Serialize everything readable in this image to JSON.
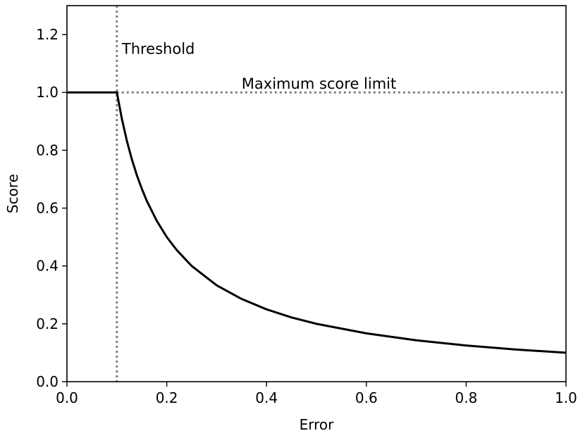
{
  "chart_data": {
    "type": "line",
    "title": "",
    "xlabel": "Error",
    "ylabel": "Score",
    "xlim": [
      0.0,
      1.0
    ],
    "ylim": [
      0.0,
      1.3
    ],
    "grid": false,
    "x_ticks": [
      0.0,
      0.2,
      0.4,
      0.6,
      0.8,
      1.0
    ],
    "x_tick_labels": [
      "0.0",
      "0.2",
      "0.4",
      "0.6",
      "0.8",
      "1.0"
    ],
    "y_ticks": [
      0.0,
      0.2,
      0.4,
      0.6,
      0.8,
      1.0,
      1.2
    ],
    "y_tick_labels": [
      "0.0",
      "0.2",
      "0.4",
      "0.6",
      "0.8",
      "1.0",
      "1.2"
    ],
    "series": [
      {
        "color": "#000000",
        "x": [
          0.0,
          0.1,
          0.11,
          0.12,
          0.13,
          0.14,
          0.15,
          0.16,
          0.18,
          0.2,
          0.22,
          0.25,
          0.3,
          0.35,
          0.4,
          0.45,
          0.5,
          0.6,
          0.7,
          0.8,
          0.9,
          1.0
        ],
        "y": [
          1.0,
          1.0,
          0.909,
          0.833,
          0.769,
          0.714,
          0.667,
          0.625,
          0.556,
          0.5,
          0.455,
          0.4,
          0.333,
          0.286,
          0.25,
          0.222,
          0.2,
          0.167,
          0.143,
          0.125,
          0.111,
          0.1
        ]
      }
    ],
    "reference_lines": [
      {
        "orientation": "vertical",
        "value": 0.1,
        "style": "dotted",
        "color": "#808080"
      },
      {
        "orientation": "horizontal",
        "value": 1.0,
        "style": "dotted",
        "color": "#808080",
        "x_from": 0.1
      }
    ],
    "annotations": [
      {
        "text": "Threshold",
        "x": 0.11,
        "y": 1.15
      },
      {
        "text": "Maximum score limit",
        "x": 0.35,
        "y": 1.03
      }
    ]
  }
}
